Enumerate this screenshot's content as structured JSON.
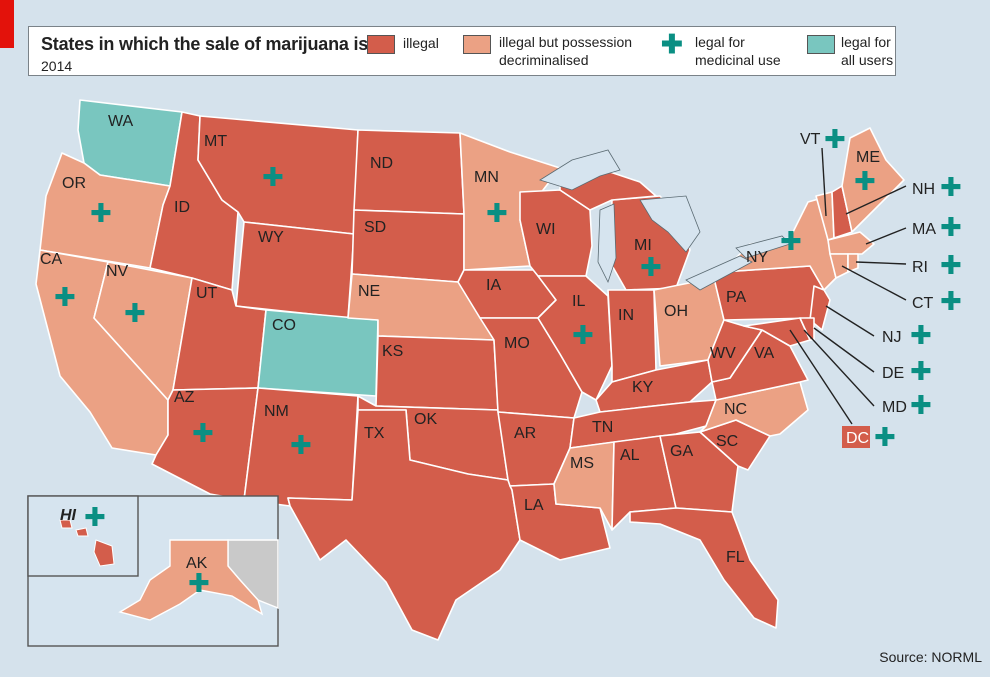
{
  "legend": {
    "title": "States in which the sale of marijuana is:",
    "year": "2014",
    "illegal": "illegal",
    "decrim_line1": "illegal but possession",
    "decrim_line2": "decriminalised",
    "medical_line1": "legal for",
    "medical_line2": "medicinal use",
    "all_line1": "legal for",
    "all_line2": "all users",
    "medical_symbol": "✚"
  },
  "colors": {
    "illegal": "#d35d4b",
    "decriminalised": "#eba184",
    "legal_all": "#79c6bf",
    "medical_mark": "#0a8f83",
    "lakes": "#d6e4ef",
    "canada": "#c9c9c9"
  },
  "states": {
    "WA": "WA",
    "OR": "OR",
    "CA": "CA",
    "NV": "NV",
    "ID": "ID",
    "MT": "MT",
    "WY": "WY",
    "UT": "UT",
    "CO": "CO",
    "AZ": "AZ",
    "NM": "NM",
    "ND": "ND",
    "SD": "SD",
    "NE": "NE",
    "KS": "KS",
    "OK": "OK",
    "TX": "TX",
    "MN": "MN",
    "IA": "IA",
    "MO": "MO",
    "AR": "AR",
    "LA": "LA",
    "WI": "WI",
    "IL": "IL",
    "MI": "MI",
    "IN": "IN",
    "OH": "OH",
    "KY": "KY",
    "TN": "TN",
    "MS": "MS",
    "AL": "AL",
    "GA": "GA",
    "FL": "FL",
    "SC": "SC",
    "NC": "NC",
    "VA": "VA",
    "WV": "WV",
    "PA": "PA",
    "NY": "NY",
    "VT": "VT",
    "ME": "ME",
    "NH": "NH",
    "MA": "MA",
    "RI": "RI",
    "CT": "CT",
    "NJ": "NJ",
    "DE": "DE",
    "MD": "MD",
    "DC": "DC",
    "HI": "HI",
    "AK": "AK"
  },
  "source": "Source: NORML"
}
